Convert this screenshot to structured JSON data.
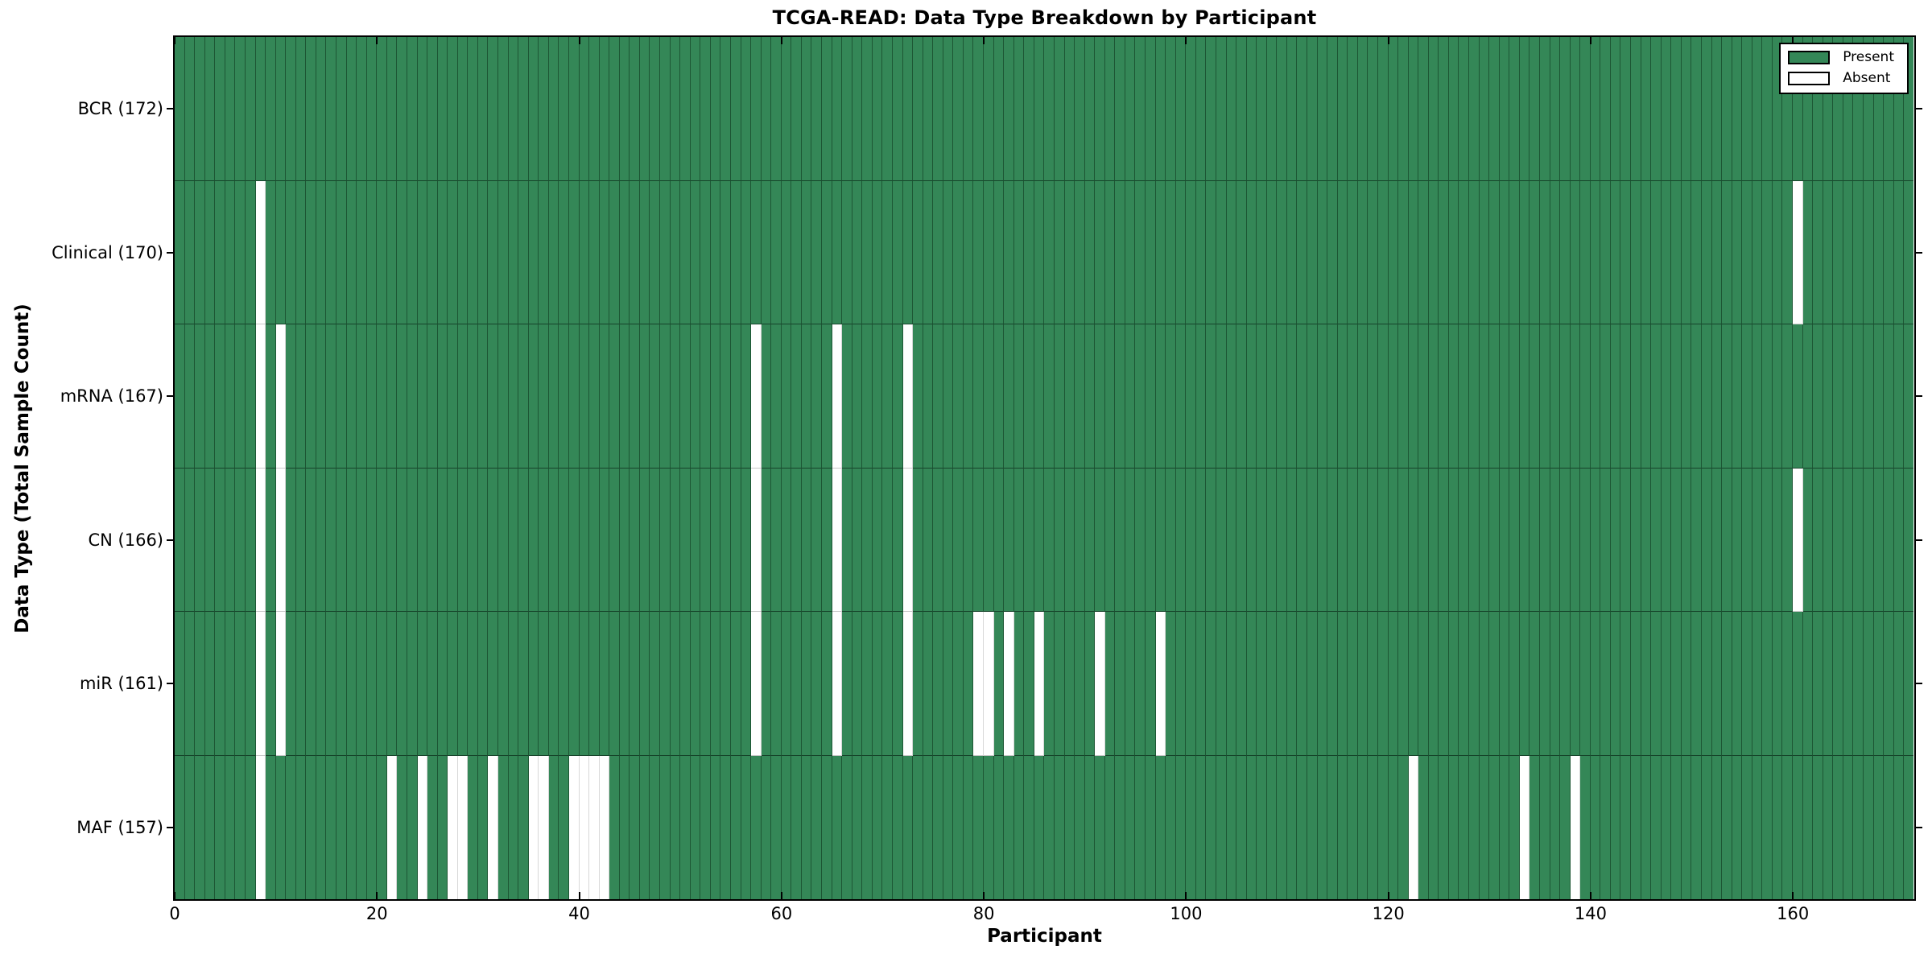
{
  "title": "TCGA-READ: Data Type Breakdown by Participant",
  "x_axis": {
    "label": "Participant",
    "ticks": [
      0,
      20,
      40,
      60,
      80,
      100,
      120,
      140,
      160
    ],
    "max": 172
  },
  "y_axis": {
    "label": "Data Type (Total Sample Count)"
  },
  "legend": {
    "items": [
      {
        "label": "Present",
        "key": "present"
      },
      {
        "label": "Absent",
        "key": "absent"
      }
    ]
  },
  "chart_data": {
    "type": "heatmap",
    "subtype": "presence-absence-matrix",
    "title": "TCGA-READ: Data Type Breakdown by Participant",
    "xlabel": "Participant",
    "ylabel": "Data Type (Total Sample Count)",
    "x_range": [
      0,
      172
    ],
    "x_ticks": [
      0,
      20,
      40,
      60,
      80,
      100,
      120,
      140,
      160
    ],
    "participants_total": 172,
    "legend_position": "upper right",
    "grid": "cell-borders",
    "colors": {
      "present": "#348757",
      "absent": "#ffffff"
    },
    "rows": [
      {
        "label": "BCR (172)",
        "name": "BCR",
        "total": 172,
        "absent_participants": []
      },
      {
        "label": "Clinical (170)",
        "name": "Clinical",
        "total": 170,
        "absent_participants": [
          8,
          160
        ]
      },
      {
        "label": "mRNA (167)",
        "name": "mRNA",
        "total": 167,
        "absent_participants": [
          8,
          10,
          57,
          65,
          72
        ]
      },
      {
        "label": "CN (166)",
        "name": "CN",
        "total": 166,
        "absent_participants": [
          8,
          10,
          57,
          65,
          72,
          160
        ]
      },
      {
        "label": "miR (161)",
        "name": "miR",
        "total": 161,
        "absent_participants": [
          8,
          10,
          57,
          65,
          72,
          79,
          80,
          82,
          85,
          91,
          97
        ]
      },
      {
        "label": "MAF (157)",
        "name": "MAF",
        "total": 157,
        "absent_participants": [
          8,
          21,
          24,
          27,
          28,
          31,
          35,
          36,
          39,
          40,
          41,
          42,
          122,
          133,
          138
        ]
      }
    ]
  }
}
